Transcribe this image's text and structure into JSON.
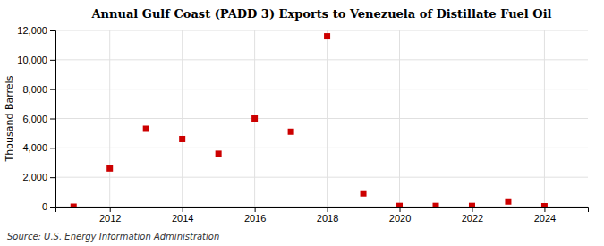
{
  "chart_data": {
    "type": "scatter",
    "title": "Annual Gulf Coast (PADD 3) Exports to Venezuela of Distillate Fuel Oil",
    "ylabel": "Thousand Barrels",
    "source": "Source: U.S. Energy Information Administration",
    "x": [
      2011,
      2012,
      2013,
      2014,
      2015,
      2016,
      2017,
      2018,
      2019,
      2020,
      2021,
      2022,
      2023,
      2024
    ],
    "values": [
      0,
      2600,
      5300,
      4600,
      3600,
      6000,
      5100,
      11600,
      900,
      50,
      50,
      50,
      350,
      30
    ],
    "color": "#cc0000",
    "marker": "square",
    "xlim": [
      2010.5,
      2025.2
    ],
    "ylim": [
      0,
      12000
    ],
    "xticks": [
      2012,
      2014,
      2016,
      2018,
      2020,
      2022,
      2024
    ],
    "yticks": [
      0,
      {
        "value": 2000,
        "label": "2,000"
      },
      {
        "value": 4000,
        "label": "4,000"
      },
      {
        "value": 6000,
        "label": "6,000"
      },
      {
        "value": 8000,
        "label": "8,000"
      },
      {
        "value": 10000,
        "label": "10,000"
      },
      {
        "value": 12000,
        "label": "12,000"
      }
    ],
    "grid": true
  }
}
